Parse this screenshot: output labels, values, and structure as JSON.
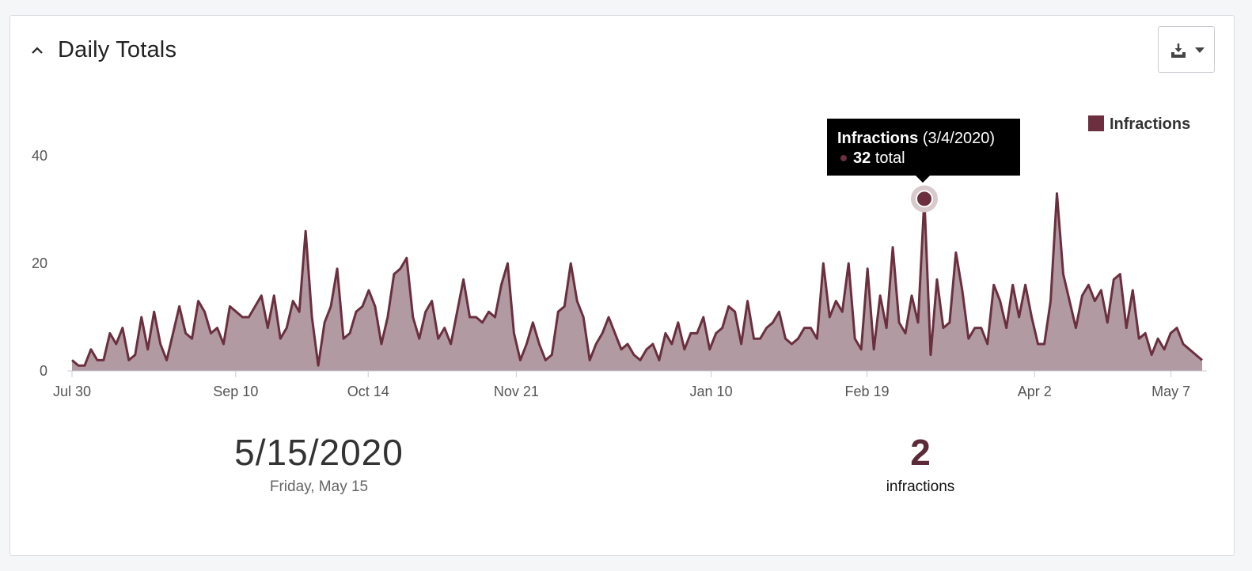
{
  "panel": {
    "title": "Daily Totals"
  },
  "icons": {
    "collapse": "chevron-up-icon",
    "export": "download-icon",
    "menu": "caret-down-icon"
  },
  "colors": {
    "series_line": "#6b2f3f",
    "series_fill": "#b19aa1",
    "accent_text": "#5a2a38"
  },
  "chart_data": {
    "type": "area",
    "x_start": "2019-07-30",
    "x_end": "2020-05-15",
    "x_tick_labels": [
      "Jul 30",
      "Sep 10",
      "Oct 14",
      "Nov 21",
      "Jan 10",
      "Feb 19",
      "Apr 2",
      "May 7"
    ],
    "y_ticks": [
      0,
      20,
      40
    ],
    "ylim": [
      0,
      45
    ],
    "legend": {
      "position": "top-right"
    },
    "grid": false,
    "series": [
      {
        "name": "Infractions",
        "values": [
          2,
          1,
          1,
          4,
          2,
          2,
          7,
          5,
          8,
          2,
          3,
          10,
          4,
          11,
          5,
          2,
          7,
          12,
          7,
          6,
          13,
          11,
          7,
          8,
          5,
          12,
          11,
          10,
          10,
          12,
          14,
          8,
          14,
          6,
          8,
          13,
          11,
          26,
          10,
          1,
          9,
          12,
          19,
          6,
          7,
          11,
          12,
          15,
          12,
          5,
          10,
          18,
          19,
          21,
          10,
          6,
          11,
          13,
          6,
          8,
          5,
          11,
          17,
          10,
          10,
          9,
          11,
          10,
          16,
          20,
          7,
          2,
          5,
          9,
          5,
          2,
          3,
          11,
          12,
          20,
          13,
          10,
          2,
          5,
          7,
          10,
          7,
          4,
          5,
          3,
          2,
          4,
          5,
          2,
          7,
          5,
          9,
          4,
          7,
          7,
          10,
          4,
          7,
          8,
          12,
          11,
          5,
          13,
          6,
          6,
          8,
          9,
          11,
          6,
          5,
          6,
          8,
          8,
          6,
          20,
          10,
          13,
          11,
          20,
          6,
          4,
          19,
          4,
          14,
          8,
          23,
          9,
          7,
          14,
          9,
          32,
          3,
          17,
          8,
          9,
          22,
          15,
          6,
          8,
          8,
          5,
          16,
          13,
          8,
          16,
          10,
          16,
          10,
          5,
          5,
          13,
          33,
          18,
          13,
          8,
          14,
          16,
          13,
          15,
          9,
          17,
          18,
          8,
          15,
          6,
          7,
          3,
          6,
          4,
          7,
          8,
          5,
          4,
          3,
          2
        ]
      }
    ]
  },
  "tooltip": {
    "series": "Infractions",
    "date": "(3/4/2020)",
    "value": "32",
    "unit": "total",
    "highlight_date": "2020-03-04"
  },
  "summary": {
    "date": "5/15/2020",
    "weekday": "Friday, May 15",
    "count": "2",
    "count_label": "infractions"
  }
}
